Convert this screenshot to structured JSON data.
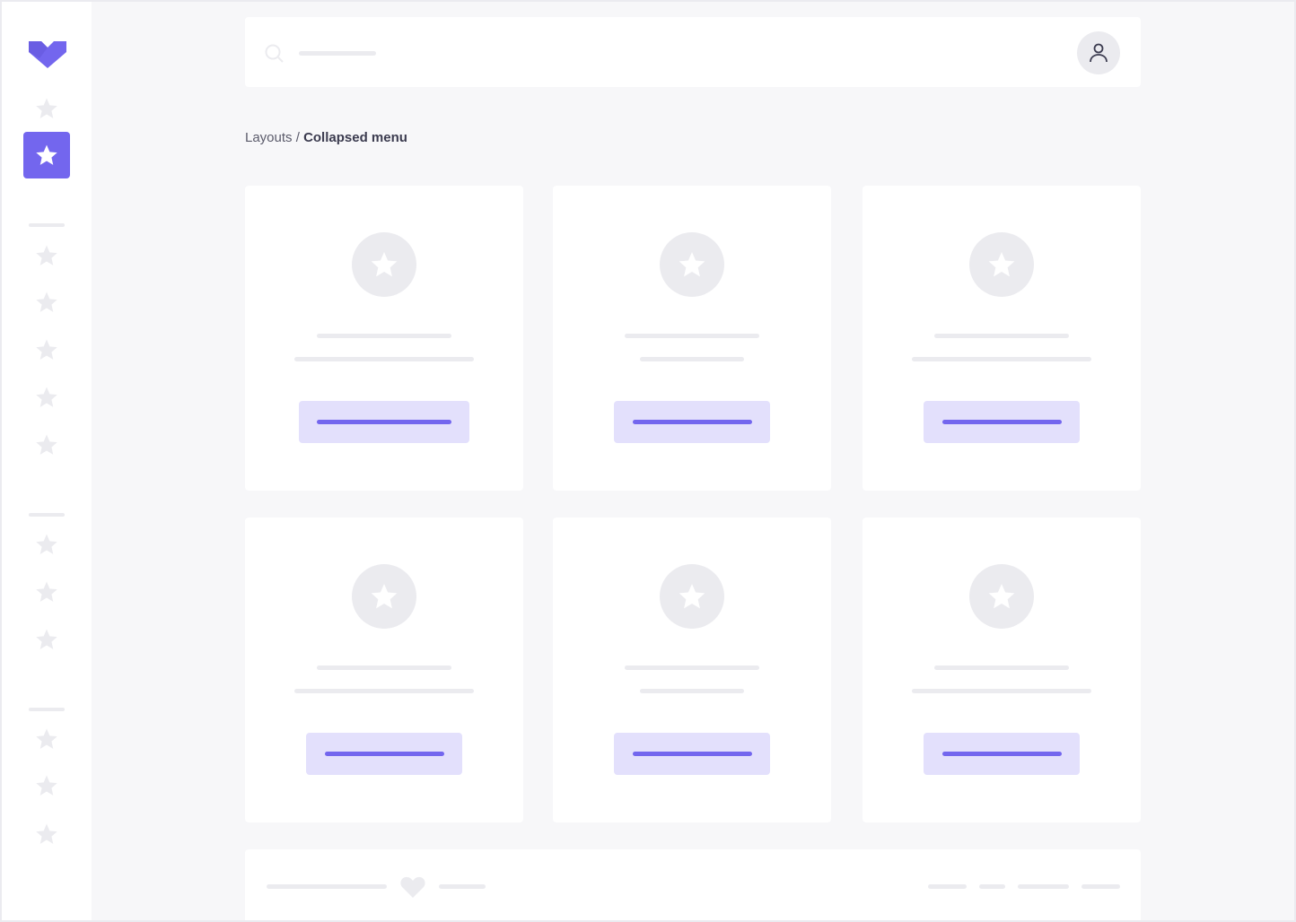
{
  "breadcrumb": {
    "parent": "Layouts",
    "separator": " / ",
    "current": "Collapsed menu"
  },
  "colors": {
    "accent": "#7366ee",
    "accent_light": "#e3e0fc",
    "placeholder": "#ebebef",
    "background": "#f7f7f9"
  },
  "icons": {
    "logo": "chevron-heart-logo",
    "nav": "star-icon",
    "search": "search-icon",
    "user": "user-icon",
    "footer": "heart-icon"
  }
}
